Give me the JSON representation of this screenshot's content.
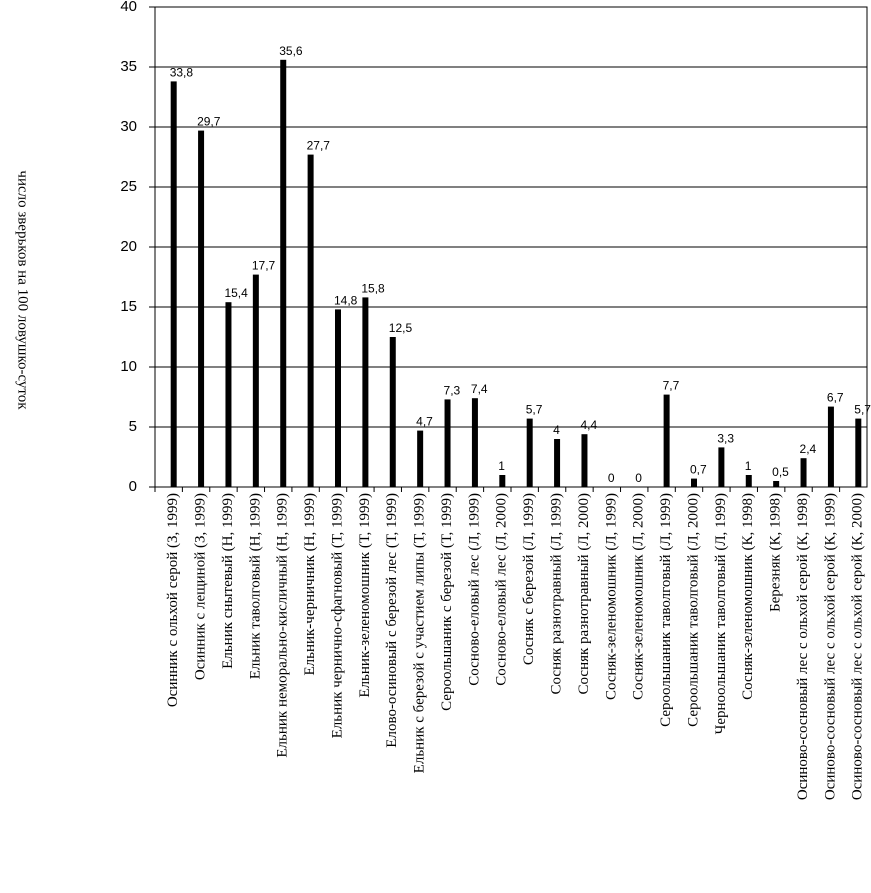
{
  "chart_data": {
    "type": "bar",
    "y_label": "число зверьков на 100 ловушко-суток",
    "categories": [
      "Осинник с ольхой серой (З, 1999)",
      "Осинник с лещиной (З, 1999)",
      "Ельник снытевый (Н, 1999)",
      "Ельник таволговый (Н, 1999)",
      "Ельник неморально-кисличный (Н, 1999)",
      "Ельник-черничник (Н, 1999)",
      "Ельник чернично-сфагновый (Т, 1999)",
      "Ельник-зеленомошник (Т, 1999)",
      "Елово-осиновый с березой лес (Т, 1999)",
      "Ельник с березой с участием липы (Т, 1999)",
      "Сероольшаник с березой (Т, 1999)",
      "Сосново-еловый лес (Л, 1999)",
      "Сосново-еловый лес (Л, 2000)",
      "Сосняк с березой (Л, 1999)",
      "Сосняк разнотравный (Л, 1999)",
      "Сосняк разнотравный (Л, 2000)",
      "Сосняк-зеленомошник (Л, 1999)",
      "Сосняк-зеленомошник (Л, 2000)",
      "Сероольшаник таволговый (Л, 1999)",
      "Сероольшаник таволговый (Л, 2000)",
      "Черноольшаник таволговый (Л, 1999)",
      "Сосняк-зеленомошник (К, 1998)",
      "Березняк (К, 1998)",
      "Осиново-сосновый лес с ольхой серой (К, 1998)",
      "Осиново-сосновый лес с ольхой серой (К, 1999)",
      "Осиново-сосновый лес с ольхой серой (К, 2000)"
    ],
    "values": [
      33.8,
      29.7,
      15.4,
      17.7,
      35.6,
      27.7,
      14.8,
      15.8,
      12.5,
      4.7,
      7.3,
      7.4,
      1,
      5.7,
      4,
      4.4,
      0,
      0,
      7.7,
      0.7,
      3.3,
      1,
      0.5,
      2.4,
      6.7,
      5.7
    ],
    "value_labels": [
      "33,8",
      "29,7",
      "15,4",
      "17,7",
      "35,6",
      "27,7",
      "14,8",
      "15,8",
      "12,5",
      "4,7",
      "7,3",
      "7,4",
      "1",
      "5,7",
      "4",
      "4,4",
      "0",
      "0",
      "7,7",
      "0,7",
      "3,3",
      "1",
      "0,5",
      "2,4",
      "6,7",
      "5,7"
    ],
    "color": "#000000",
    "ylim": [
      0,
      40
    ],
    "yticks": [
      0,
      5,
      10,
      15,
      20,
      25,
      30,
      35,
      40
    ],
    "grid": true
  }
}
